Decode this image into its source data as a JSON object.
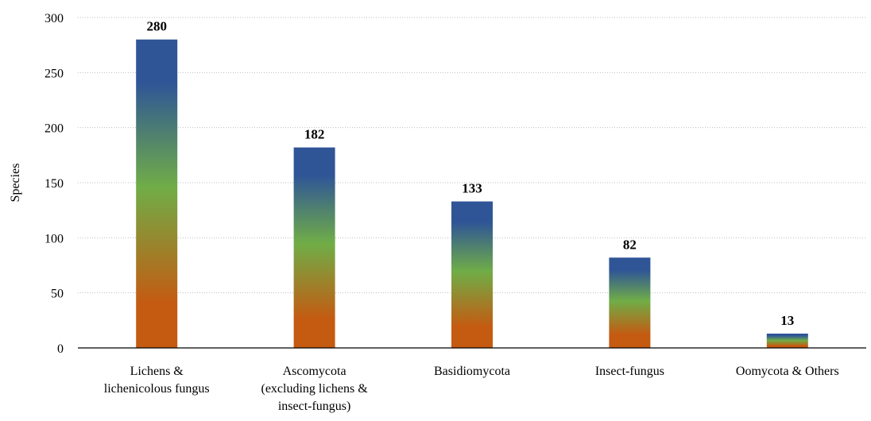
{
  "chart_data": {
    "type": "bar",
    "title": "",
    "xlabel": "",
    "ylabel": "Species",
    "ylim": [
      0,
      300
    ],
    "yticks": [
      0,
      50,
      100,
      150,
      200,
      250,
      300
    ],
    "grid": true,
    "categories": [
      [
        "Lichens &",
        "lichenicolous fungus"
      ],
      [
        "Ascomycota",
        "(excluding lichens &",
        "insect-fungus)"
      ],
      [
        "Basidiomycota"
      ],
      [
        "Insect-fungus"
      ],
      [
        "Oomycota & Others"
      ]
    ],
    "values": [
      280,
      182,
      133,
      82,
      13
    ],
    "data_labels": [
      "280",
      "182",
      "133",
      "82",
      "13"
    ],
    "bar_gradient": [
      "#c55a11",
      "#70ad47",
      "#2f5597"
    ]
  }
}
